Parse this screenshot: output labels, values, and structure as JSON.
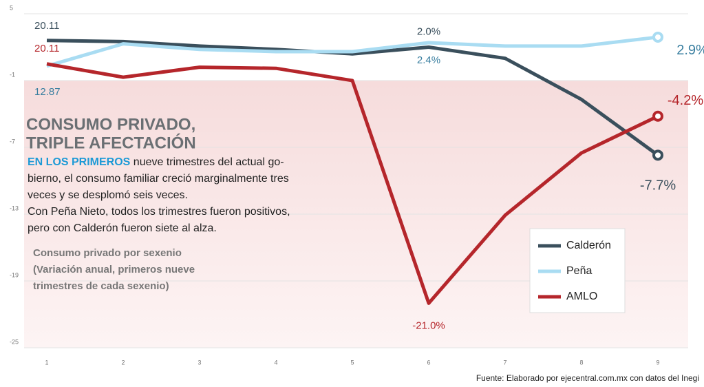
{
  "chart_data": {
    "type": "line",
    "title": [
      "CONSUMO PRIVADO,",
      "TRIPLE AFECTACIÓN"
    ],
    "lead": "EN LOS PRIMEROS",
    "body": [
      " nueve trimestres del actual go-",
      "bierno, el consumo familiar creció marginalmente tres",
      "veces y se desplomó seis veces.",
      "Con Peña Nieto, todos los trimestres fueron positivos,",
      "pero con Calderón fueron siete al alza."
    ],
    "subtitle": [
      "Consumo privado por sexenio",
      "(Variación anual, primeros nueve",
      "trimestres de cada sexenio)"
    ],
    "source": "Fuente: Elaborado por ejecentral.com.mx con datos del Inegi",
    "annotations": [
      "20.11",
      "20.11",
      "12.87"
    ],
    "categories": [
      "1",
      "2",
      "3",
      "4",
      "5",
      "6",
      "7",
      "8",
      "9"
    ],
    "series": [
      {
        "name": "Calderón",
        "color": "#3a4f5c",
        "values": [
          2.6,
          2.5,
          2.1,
          1.8,
          1.4,
          2.0,
          1.0,
          -2.7,
          -7.7
        ],
        "value_labels": [
          null,
          null,
          null,
          null,
          null,
          "2.0%",
          null,
          null,
          "-7.7%"
        ]
      },
      {
        "name": "Peña",
        "color": "#a9dcf2",
        "values": [
          0.3,
          2.3,
          1.8,
          1.6,
          1.6,
          2.4,
          2.1,
          2.1,
          2.9
        ],
        "value_labels": [
          null,
          null,
          null,
          null,
          null,
          "2.4%",
          null,
          null,
          "2.9%"
        ]
      },
      {
        "name": "AMLO",
        "color": "#b5262b",
        "values": [
          0.5,
          -0.7,
          0.2,
          0.1,
          -1.0,
          -21.0,
          -13.1,
          -7.5,
          -4.2
        ],
        "value_labels": [
          null,
          null,
          null,
          null,
          null,
          "-21.0%",
          null,
          null,
          "-4.2%"
        ]
      }
    ],
    "ylim": [
      -25,
      5
    ],
    "yticks": [
      -25,
      -19,
      -13,
      -7,
      -1,
      5
    ],
    "grid": true
  }
}
